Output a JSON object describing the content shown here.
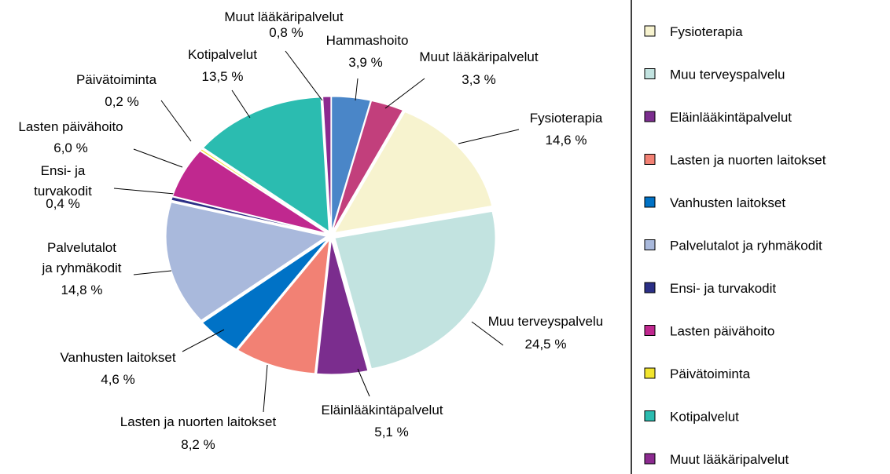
{
  "chart_data": {
    "type": "pie",
    "categories": [
      "Hammashoito",
      "Muut lääkäripalvelut",
      "Fysioterapia",
      "Muu terveyspalvelu",
      "Eläinlääkintäpalvelut",
      "Lasten ja nuorten laitokset",
      "Vanhusten laitokset",
      "Palvelutalot\nja ryhmäkodit",
      "Ensi- ja\nturvakodit",
      "Lasten päivähoito",
      "Päivätoiminta",
      "Kotipalvelut",
      "Muut lääkäripalvelut"
    ],
    "values": [
      3.9,
      3.3,
      14.6,
      24.5,
      5.1,
      8.2,
      4.6,
      14.8,
      0.4,
      6.0,
      0.2,
      13.5,
      0.8
    ],
    "value_labels": [
      "3,9 %",
      "3,3 %",
      "14,6 %",
      "24,5 %",
      "5,1 %",
      "8,2 %",
      "4,6 %",
      "14,8 %",
      "0,4 %",
      "6,0 %",
      "0,2 %",
      "13,5 %",
      "0,8 %"
    ],
    "colors": [
      "#4a86c8",
      "#c23f7c",
      "#f7f3cf",
      "#c2e3e0",
      "#7b2d8e",
      "#f28174",
      "#0072c6",
      "#a9b9dc",
      "#2b2f86",
      "#c0288f",
      "#f2e52e",
      "#2bbcb0",
      "#8c2a90"
    ],
    "legend": [
      {
        "name": "Fysioterapia",
        "color": "#f7f3cf"
      },
      {
        "name": "Muu terveyspalvelu",
        "color": "#c2e3e0"
      },
      {
        "name": "Eläinlääkintäpalvelut",
        "color": "#7b2d8e"
      },
      {
        "name": "Lasten ja nuorten laitokset",
        "color": "#f28174"
      },
      {
        "name": "Vanhusten laitokset",
        "color": "#0072c6"
      },
      {
        "name": "Palvelutalot ja ryhmäkodit",
        "color": "#a9b9dc"
      },
      {
        "name": "Ensi- ja turvakodit",
        "color": "#2b2f86"
      },
      {
        "name": "Lasten päivähoito",
        "color": "#c0288f"
      },
      {
        "name": "Päivätoiminta",
        "color": "#f2e52e"
      },
      {
        "name": "Kotipalvelut",
        "color": "#2bbcb0"
      },
      {
        "name": "Muut lääkäripalvelut",
        "color": "#8c2a90"
      }
    ]
  }
}
